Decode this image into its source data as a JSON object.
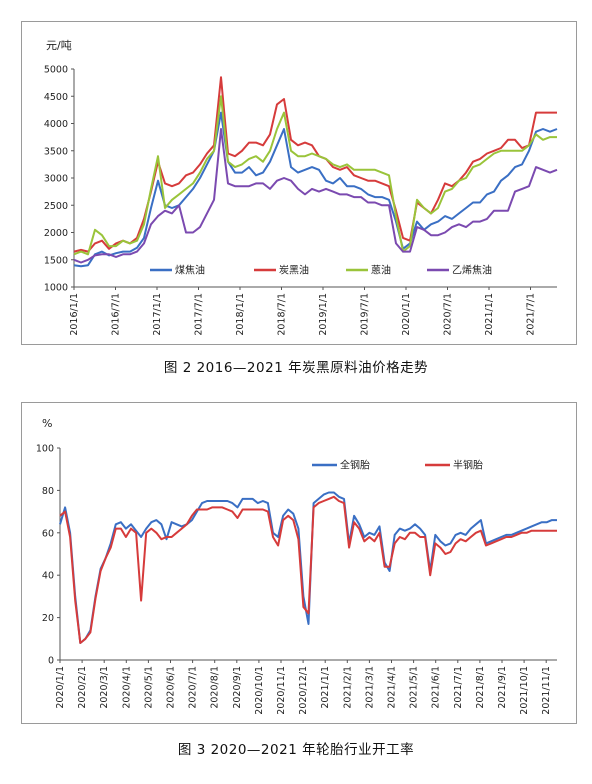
{
  "chart_data": [
    {
      "type": "line",
      "unit": "元/吨",
      "ylim": [
        1000,
        5000
      ],
      "yticks": [
        1000,
        1500,
        2000,
        2500,
        3000,
        3500,
        4000,
        4500,
        5000
      ],
      "x_tick_labels": [
        "2016/1/1",
        "2016/7/1",
        "2017/1/1",
        "2017/7/1",
        "2018/1/1",
        "2018/7/1",
        "2019/1/1",
        "2019/7/1",
        "2020/1/1",
        "2020/7/1",
        "2021/1/1",
        "2021/7/1"
      ],
      "x_range_months": [
        0,
        69
      ],
      "legend": "bottom",
      "grid": false,
      "series": [
        {
          "name": "煤焦油",
          "color": "#3a6fc4",
          "x": [
            0,
            1,
            2,
            3,
            4,
            5,
            6,
            7,
            8,
            9,
            10,
            11,
            12,
            13,
            14,
            15,
            16,
            17,
            18,
            19,
            20,
            21,
            22,
            23,
            24,
            25,
            26,
            27,
            28,
            29,
            30,
            31,
            32,
            33,
            34,
            35,
            36,
            37,
            38,
            39,
            40,
            41,
            42,
            43,
            44,
            45,
            46,
            47,
            48,
            49,
            50,
            51,
            52,
            53,
            54,
            55,
            56,
            57,
            58,
            59,
            60,
            61,
            62,
            63,
            64,
            65,
            66,
            67,
            68,
            69
          ],
          "values": [
            1400,
            1380,
            1400,
            1600,
            1650,
            1580,
            1620,
            1650,
            1650,
            1720,
            1900,
            2450,
            2950,
            2500,
            2450,
            2500,
            2650,
            2800,
            3000,
            3250,
            3500,
            4200,
            3300,
            3100,
            3100,
            3200,
            3050,
            3100,
            3300,
            3600,
            3900,
            3200,
            3100,
            3150,
            3200,
            3150,
            2950,
            2900,
            3000,
            2850,
            2850,
            2800,
            2700,
            2650,
            2650,
            2600,
            2200,
            1700,
            1800,
            2200,
            2050,
            2150,
            2200,
            2300,
            2250,
            2350,
            2450,
            2550,
            2550,
            2700,
            2750,
            2950,
            3050,
            3200,
            3250,
            3500,
            3850,
            3900,
            3850,
            3900
          ]
        },
        {
          "name": "炭黑油",
          "color": "#d63b3b",
          "x": [
            0,
            1,
            2,
            3,
            4,
            5,
            6,
            7,
            8,
            9,
            10,
            11,
            12,
            13,
            14,
            15,
            16,
            17,
            18,
            19,
            20,
            21,
            22,
            23,
            24,
            25,
            26,
            27,
            28,
            29,
            30,
            31,
            32,
            33,
            34,
            35,
            36,
            37,
            38,
            39,
            40,
            41,
            42,
            43,
            44,
            45,
            46,
            47,
            48,
            49,
            50,
            51,
            52,
            53,
            54,
            55,
            56,
            57,
            58,
            59,
            60,
            61,
            62,
            63,
            64,
            65,
            66,
            67,
            68,
            69
          ],
          "values": [
            1650,
            1680,
            1650,
            1800,
            1850,
            1700,
            1800,
            1850,
            1800,
            1900,
            2250,
            2750,
            3300,
            2900,
            2850,
            2900,
            3050,
            3100,
            3250,
            3450,
            3600,
            4850,
            3450,
            3400,
            3500,
            3650,
            3650,
            3600,
            3800,
            4350,
            4450,
            3700,
            3600,
            3650,
            3600,
            3400,
            3350,
            3200,
            3150,
            3200,
            3050,
            3000,
            2950,
            2950,
            2900,
            2850,
            2400,
            1900,
            1850,
            2550,
            2450,
            2350,
            2600,
            2900,
            2850,
            2950,
            3100,
            3300,
            3350,
            3450,
            3500,
            3550,
            3700,
            3700,
            3550,
            3600,
            4200,
            4200,
            4200,
            4200
          ]
        },
        {
          "name": "蒽油",
          "color": "#9ac43a",
          "x": [
            0,
            1,
            2,
            3,
            4,
            5,
            6,
            7,
            8,
            9,
            10,
            11,
            12,
            13,
            14,
            15,
            16,
            17,
            18,
            19,
            20,
            21,
            22,
            23,
            24,
            25,
            26,
            27,
            28,
            29,
            30,
            31,
            32,
            33,
            34,
            35,
            36,
            37,
            38,
            39,
            40,
            41,
            42,
            43,
            44,
            45,
            46,
            47,
            48,
            49,
            50,
            51,
            52,
            53,
            54,
            55,
            56,
            57,
            58,
            59,
            60,
            61,
            62,
            63,
            64,
            65,
            66,
            67,
            68,
            69
          ],
          "values": [
            1600,
            1650,
            1600,
            2050,
            1950,
            1750,
            1750,
            1850,
            1800,
            1850,
            2150,
            2800,
            3400,
            2450,
            2600,
            2700,
            2800,
            2900,
            3100,
            3350,
            3500,
            4500,
            3300,
            3200,
            3250,
            3350,
            3400,
            3300,
            3500,
            3900,
            4200,
            3500,
            3400,
            3400,
            3450,
            3400,
            3350,
            3250,
            3200,
            3250,
            3150,
            3150,
            3150,
            3150,
            3100,
            3050,
            2300,
            1650,
            1750,
            2600,
            2450,
            2350,
            2450,
            2750,
            2800,
            2950,
            3000,
            3200,
            3250,
            3350,
            3450,
            3500,
            3500,
            3500,
            3500,
            3600,
            3800,
            3700,
            3750,
            3750
          ]
        },
        {
          "name": "乙烯焦油",
          "color": "#7b4ab0",
          "x": [
            0,
            1,
            2,
            3,
            4,
            5,
            6,
            7,
            8,
            9,
            10,
            11,
            12,
            13,
            14,
            15,
            16,
            17,
            18,
            19,
            20,
            21,
            22,
            23,
            24,
            25,
            26,
            27,
            28,
            29,
            30,
            31,
            32,
            33,
            34,
            35,
            36,
            37,
            38,
            39,
            40,
            41,
            42,
            43,
            44,
            45,
            46,
            47,
            48,
            49,
            50,
            51,
            52,
            53,
            54,
            55,
            56,
            57,
            58,
            59,
            60,
            61,
            62,
            63,
            64,
            65,
            66,
            67,
            68,
            69
          ],
          "values": [
            1500,
            1450,
            1500,
            1580,
            1600,
            1600,
            1550,
            1600,
            1600,
            1650,
            1800,
            2150,
            2300,
            2400,
            2350,
            2500,
            2000,
            2000,
            2100,
            2350,
            2600,
            3900,
            2900,
            2850,
            2850,
            2850,
            2900,
            2900,
            2800,
            2950,
            3000,
            2950,
            2800,
            2700,
            2800,
            2750,
            2800,
            2750,
            2700,
            2700,
            2650,
            2650,
            2550,
            2550,
            2500,
            2500,
            1800,
            1650,
            1650,
            2100,
            2050,
            1950,
            1950,
            2000,
            2100,
            2150,
            2100,
            2200,
            2200,
            2250,
            2400,
            2400,
            2400,
            2750,
            2800,
            2850,
            3200,
            3150,
            3100,
            3150
          ]
        }
      ]
    },
    {
      "type": "line",
      "unit": "%",
      "ylim": [
        0,
        100
      ],
      "yticks": [
        0,
        20,
        40,
        60,
        80,
        100
      ],
      "x_tick_labels": [
        "2020/1/1",
        "2020/2/1",
        "2020/3/1",
        "2020/4/1",
        "2020/5/1",
        "2020/6/1",
        "2020/7/1",
        "2020/8/1",
        "2020/9/1",
        "2020/10/1",
        "2020/11/1",
        "2020/12/1",
        "2021/1/1",
        "2021/2/1",
        "2021/3/1",
        "2021/4/1",
        "2021/5/1",
        "2021/6/1",
        "2021/7/1",
        "2021/8/1",
        "2021/9/1",
        "2021/10/1",
        "2021/11/1"
      ],
      "x_range_weeks": [
        0,
        98
      ],
      "legend": "top-right",
      "grid": false,
      "series": [
        {
          "name": "全钢胎",
          "color": "#3a6fc4",
          "x": [
            0,
            1,
            2,
            3,
            4,
            5,
            6,
            7,
            8,
            9,
            10,
            11,
            12,
            13,
            14,
            15,
            16,
            17,
            18,
            19,
            20,
            21,
            22,
            23,
            24,
            25,
            26,
            27,
            28,
            29,
            30,
            31,
            32,
            33,
            34,
            35,
            36,
            37,
            38,
            39,
            40,
            41,
            42,
            43,
            44,
            45,
            46,
            47,
            48,
            49,
            50,
            51,
            52,
            53,
            54,
            55,
            56,
            57,
            58,
            59,
            60,
            61,
            62,
            63,
            64,
            65,
            66,
            67,
            68,
            69,
            70,
            71,
            72,
            73,
            74,
            75,
            76,
            77,
            78,
            79,
            80,
            81,
            82,
            83,
            84,
            85,
            86,
            87,
            88,
            89,
            90,
            91,
            92,
            93,
            94,
            95,
            96,
            97,
            98
          ],
          "values": [
            64,
            72,
            60,
            30,
            8,
            10,
            14,
            30,
            43,
            48,
            55,
            64,
            65,
            62,
            64,
            61,
            58,
            62,
            65,
            66,
            64,
            57,
            65,
            64,
            63,
            64,
            66,
            70,
            74,
            75,
            75,
            75,
            75,
            75,
            74,
            72,
            76,
            76,
            76,
            74,
            75,
            74,
            60,
            58,
            68,
            71,
            69,
            62,
            30,
            17,
            74,
            76,
            78,
            79,
            79,
            77,
            76,
            55,
            68,
            64,
            58,
            60,
            59,
            63,
            46,
            42,
            59,
            62,
            61,
            62,
            64,
            62,
            59,
            42,
            59,
            56,
            54,
            55,
            59,
            60,
            59,
            62,
            64,
            66,
            55,
            56,
            57,
            58,
            59,
            59,
            60,
            61,
            62,
            63,
            64,
            65,
            65,
            66,
            66
          ]
        },
        {
          "name": "半钢胎",
          "color": "#d63b3b",
          "x": [
            0,
            1,
            2,
            3,
            4,
            5,
            6,
            7,
            8,
            9,
            10,
            11,
            12,
            13,
            14,
            15,
            16,
            17,
            18,
            19,
            20,
            21,
            22,
            23,
            24,
            25,
            26,
            27,
            28,
            29,
            30,
            31,
            32,
            33,
            34,
            35,
            36,
            37,
            38,
            39,
            40,
            41,
            42,
            43,
            44,
            45,
            46,
            47,
            48,
            49,
            50,
            51,
            52,
            53,
            54,
            55,
            56,
            57,
            58,
            59,
            60,
            61,
            62,
            63,
            64,
            65,
            66,
            67,
            68,
            69,
            70,
            71,
            72,
            73,
            74,
            75,
            76,
            77,
            78,
            79,
            80,
            81,
            82,
            83,
            84,
            85,
            86,
            87,
            88,
            89,
            90,
            91,
            92,
            93,
            94,
            95,
            96,
            97,
            98
          ],
          "values": [
            68,
            70,
            58,
            28,
            8,
            10,
            13,
            29,
            42,
            48,
            53,
            62,
            62,
            58,
            62,
            60,
            28,
            60,
            62,
            60,
            57,
            58,
            58,
            60,
            62,
            64,
            68,
            71,
            71,
            71,
            72,
            72,
            72,
            71,
            70,
            67,
            71,
            71,
            71,
            71,
            71,
            70,
            58,
            54,
            66,
            68,
            66,
            57,
            25,
            22,
            72,
            74,
            75,
            76,
            77,
            75,
            74,
            53,
            65,
            62,
            56,
            58,
            56,
            60,
            44,
            44,
            55,
            58,
            57,
            60,
            60,
            58,
            58,
            40,
            55,
            53,
            50,
            51,
            55,
            57,
            56,
            58,
            60,
            61,
            54,
            55,
            56,
            57,
            58,
            58,
            59,
            60,
            60,
            61,
            61,
            61,
            61,
            61,
            61
          ]
        }
      ]
    }
  ],
  "captions": {
    "fig2": "图 2  2016—2021 年炭黑原料油价格走势",
    "fig3": "图 3  2020—2021 年轮胎行业开工率"
  }
}
